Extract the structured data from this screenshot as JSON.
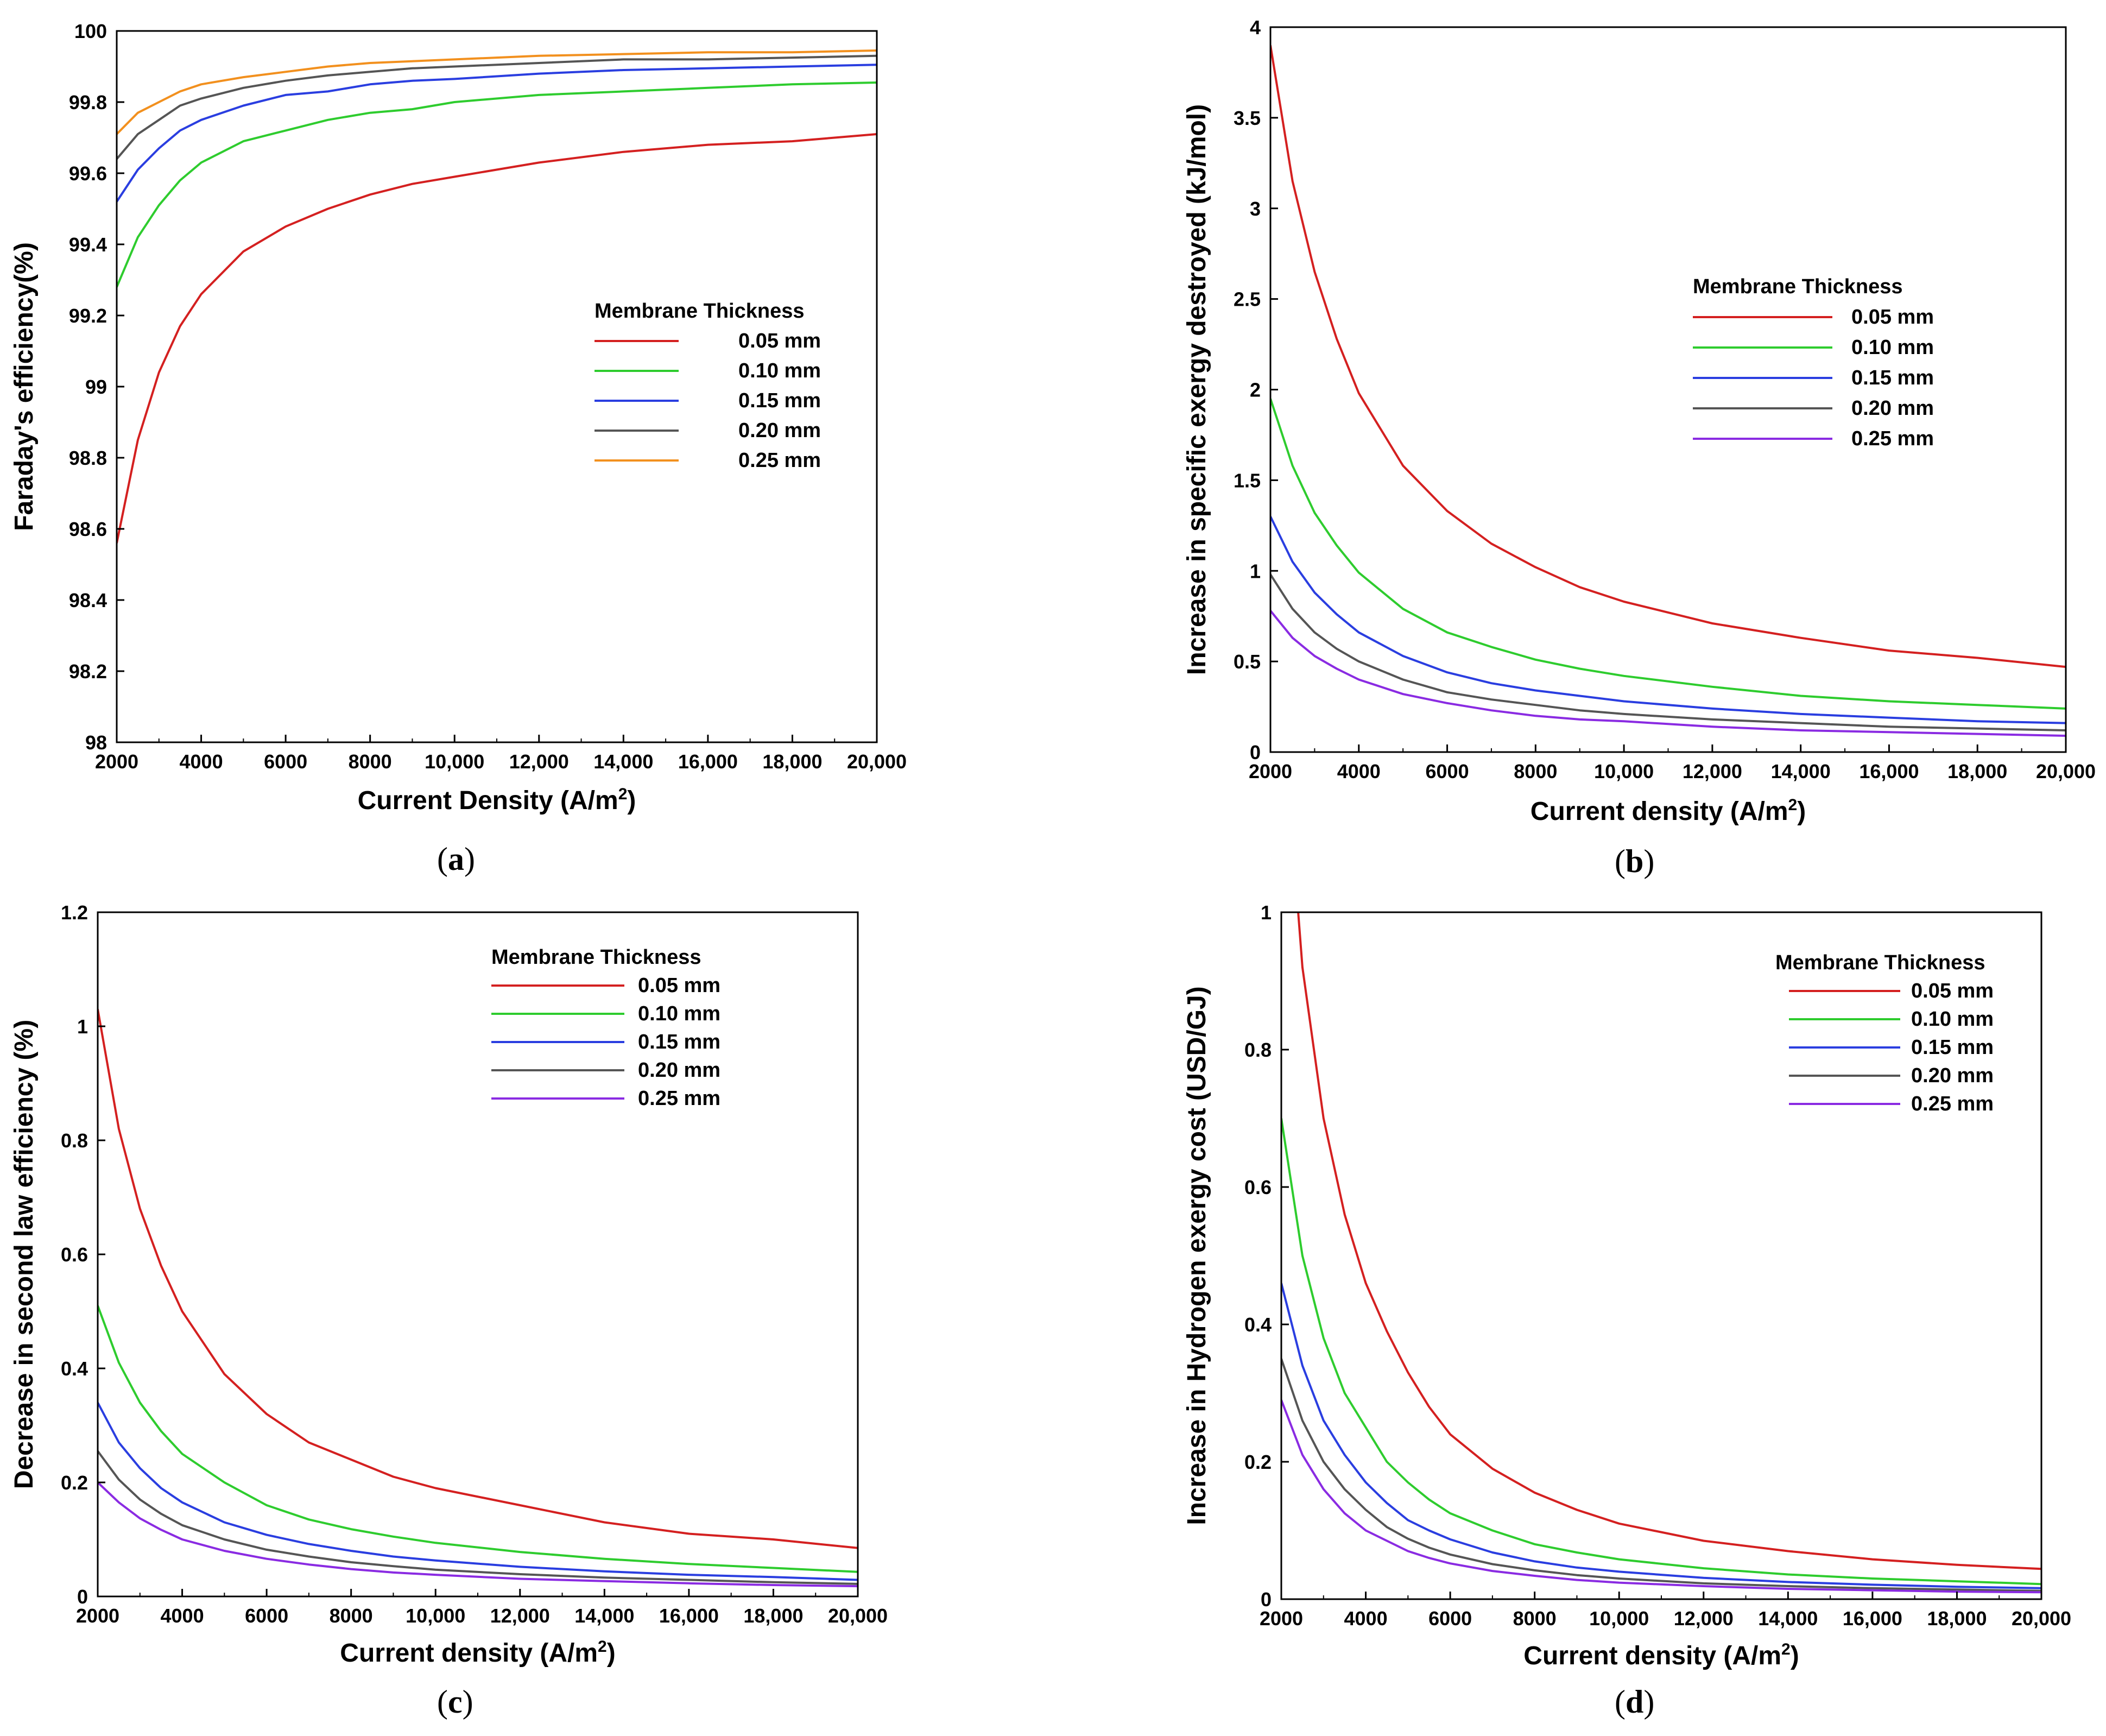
{
  "figure": {
    "legend_title": "Membrane Thickness",
    "series_names": [
      "0.05 mm",
      "0.10 mm",
      "0.15 mm",
      "0.20 mm",
      "0.25 mm"
    ],
    "colors": {
      "0.05 mm": "#d42020",
      "0.10 mm": "#2ecc2e",
      "0.15 mm": "#2a3ee0",
      "0.20 mm": "#555555",
      "0.25 mm": "#f2901e",
      "0.25 mm_alt": "#8a2be2"
    }
  },
  "chart_data": [
    {
      "id": "a",
      "caption_letter": "a",
      "type": "line",
      "xlabel": "Current Density (A/m",
      "xlabel_sup": "2",
      "xlabel_end": ")",
      "ylabel": "Faraday's efficiency(%)",
      "xlim": [
        2000,
        20000
      ],
      "ylim": [
        98,
        100
      ],
      "xticks": [
        2000,
        4000,
        6000,
        8000,
        10000,
        12000,
        14000,
        16000,
        18000,
        20000
      ],
      "xtick_labels": [
        "2000",
        "4000",
        "6000",
        "8000",
        "10,000",
        "12,000",
        "14,000",
        "16,000",
        "18,000",
        "20,000"
      ],
      "yticks": [
        98,
        98.2,
        98.4,
        98.6,
        98.8,
        99,
        99.2,
        99.4,
        99.6,
        99.8,
        100
      ],
      "ytick_labels": [
        "98",
        "98.2",
        "98.4",
        "98.6",
        "98.8",
        "99",
        "99.2",
        "99.4",
        "99.6",
        "99.8",
        "100"
      ],
      "legend_title": "Membrane Thickness",
      "x": [
        2000,
        2500,
        3000,
        3500,
        4000,
        5000,
        6000,
        7000,
        8000,
        9000,
        10000,
        12000,
        14000,
        16000,
        18000,
        20000
      ],
      "series": [
        {
          "name": "0.05 mm",
          "color": "#d42020",
          "values": [
            98.56,
            98.85,
            99.04,
            99.17,
            99.26,
            99.38,
            99.45,
            99.5,
            99.54,
            99.57,
            99.59,
            99.63,
            99.66,
            99.68,
            99.69,
            99.71
          ]
        },
        {
          "name": "0.10 mm",
          "color": "#2ecc2e",
          "values": [
            99.28,
            99.42,
            99.51,
            99.58,
            99.63,
            99.69,
            99.72,
            99.75,
            99.77,
            99.78,
            99.8,
            99.82,
            99.83,
            99.84,
            99.85,
            99.855
          ]
        },
        {
          "name": "0.15 mm",
          "color": "#2a3ee0",
          "values": [
            99.52,
            99.61,
            99.67,
            99.72,
            99.75,
            99.79,
            99.82,
            99.83,
            99.85,
            99.86,
            99.865,
            99.88,
            99.89,
            99.895,
            99.9,
            99.905
          ]
        },
        {
          "name": "0.20 mm",
          "color": "#555555",
          "values": [
            99.64,
            99.71,
            99.75,
            99.79,
            99.81,
            99.84,
            99.86,
            99.875,
            99.885,
            99.895,
            99.9,
            99.91,
            99.92,
            99.92,
            99.925,
            99.93
          ]
        },
        {
          "name": "0.25 mm",
          "color": "#f2901e",
          "values": [
            99.71,
            99.77,
            99.8,
            99.83,
            99.85,
            99.87,
            99.885,
            99.9,
            99.91,
            99.915,
            99.92,
            99.93,
            99.935,
            99.94,
            99.94,
            99.945
          ]
        }
      ]
    },
    {
      "id": "b",
      "caption_letter": "b",
      "type": "line",
      "xlabel": "Current density (A/m",
      "xlabel_sup": "2",
      "xlabel_end": ")",
      "ylabel": "Increase in specific exergy destroyed (kJ/mol)",
      "xlim": [
        2000,
        20000
      ],
      "ylim": [
        0,
        4
      ],
      "xticks": [
        2000,
        4000,
        6000,
        8000,
        10000,
        12000,
        14000,
        16000,
        18000,
        20000
      ],
      "xtick_labels": [
        "2000",
        "4000",
        "6000",
        "8000",
        "10,000",
        "12,000",
        "14,000",
        "16,000",
        "18,000",
        "20,000"
      ],
      "yticks": [
        0,
        0.5,
        1,
        1.5,
        2,
        2.5,
        3,
        3.5,
        4
      ],
      "ytick_labels": [
        "0",
        "0.5",
        "1",
        "1.5",
        "2",
        "2.5",
        "3",
        "3.5",
        "4"
      ],
      "legend_title": "Membrane Thickness",
      "x": [
        2000,
        2500,
        3000,
        3500,
        4000,
        5000,
        6000,
        7000,
        8000,
        9000,
        10000,
        12000,
        14000,
        16000,
        18000,
        20000
      ],
      "series": [
        {
          "name": "0.05 mm",
          "color": "#d42020",
          "values": [
            3.9,
            3.15,
            2.65,
            2.28,
            1.98,
            1.58,
            1.33,
            1.15,
            1.02,
            0.91,
            0.83,
            0.71,
            0.63,
            0.56,
            0.52,
            0.47
          ]
        },
        {
          "name": "0.10 mm",
          "color": "#2ecc2e",
          "values": [
            1.95,
            1.58,
            1.32,
            1.14,
            0.99,
            0.79,
            0.66,
            0.58,
            0.51,
            0.46,
            0.42,
            0.36,
            0.31,
            0.28,
            0.26,
            0.24
          ]
        },
        {
          "name": "0.15 mm",
          "color": "#2a3ee0",
          "values": [
            1.3,
            1.05,
            0.88,
            0.76,
            0.66,
            0.53,
            0.44,
            0.38,
            0.34,
            0.31,
            0.28,
            0.24,
            0.21,
            0.19,
            0.17,
            0.16
          ]
        },
        {
          "name": "0.20 mm",
          "color": "#555555",
          "values": [
            0.98,
            0.79,
            0.66,
            0.57,
            0.5,
            0.4,
            0.33,
            0.29,
            0.26,
            0.23,
            0.21,
            0.18,
            0.16,
            0.14,
            0.13,
            0.12
          ]
        },
        {
          "name": "0.25 mm",
          "color": "#8a2be2",
          "values": [
            0.78,
            0.63,
            0.53,
            0.46,
            0.4,
            0.32,
            0.27,
            0.23,
            0.2,
            0.18,
            0.17,
            0.14,
            0.12,
            0.11,
            0.1,
            0.09
          ]
        }
      ]
    },
    {
      "id": "c",
      "caption_letter": "c",
      "type": "line",
      "xlabel": "Current density (A/m",
      "xlabel_sup": "2",
      "xlabel_end": ")",
      "ylabel": "Decrease in second law efficiency (%)",
      "xlim": [
        2000,
        20000
      ],
      "ylim": [
        0,
        1.2
      ],
      "xticks": [
        2000,
        4000,
        6000,
        8000,
        10000,
        12000,
        14000,
        16000,
        18000,
        20000
      ],
      "xtick_labels": [
        "2000",
        "4000",
        "6000",
        "8000",
        "10,000",
        "12,000",
        "14,000",
        "16,000",
        "18,000",
        "20,000"
      ],
      "yticks": [
        0,
        0.2,
        0.4,
        0.6,
        0.8,
        1,
        1.2
      ],
      "ytick_labels": [
        "0",
        "0.2",
        "0.4",
        "0.6",
        "0.8",
        "1",
        "1.2"
      ],
      "legend_title": "Membrane Thickness",
      "x": [
        2000,
        2500,
        3000,
        3500,
        4000,
        5000,
        6000,
        7000,
        8000,
        9000,
        10000,
        12000,
        14000,
        16000,
        18000,
        20000
      ],
      "series": [
        {
          "name": "0.05 mm",
          "color": "#d42020",
          "values": [
            1.03,
            0.82,
            0.68,
            0.58,
            0.5,
            0.39,
            0.32,
            0.27,
            0.24,
            0.21,
            0.19,
            0.16,
            0.13,
            0.11,
            0.1,
            0.085
          ]
        },
        {
          "name": "0.10 mm",
          "color": "#2ecc2e",
          "values": [
            0.51,
            0.41,
            0.34,
            0.29,
            0.25,
            0.2,
            0.16,
            0.135,
            0.118,
            0.105,
            0.094,
            0.078,
            0.066,
            0.057,
            0.05,
            0.043
          ]
        },
        {
          "name": "0.15 mm",
          "color": "#2a3ee0",
          "values": [
            0.34,
            0.27,
            0.225,
            0.19,
            0.165,
            0.13,
            0.108,
            0.092,
            0.08,
            0.07,
            0.063,
            0.052,
            0.044,
            0.038,
            0.034,
            0.029
          ]
        },
        {
          "name": "0.20 mm",
          "color": "#555555",
          "values": [
            0.255,
            0.205,
            0.17,
            0.145,
            0.125,
            0.1,
            0.082,
            0.07,
            0.06,
            0.053,
            0.047,
            0.039,
            0.033,
            0.029,
            0.025,
            0.022
          ]
        },
        {
          "name": "0.25 mm",
          "color": "#8a2be2",
          "values": [
            0.2,
            0.165,
            0.137,
            0.117,
            0.1,
            0.08,
            0.066,
            0.056,
            0.048,
            0.042,
            0.038,
            0.031,
            0.027,
            0.023,
            0.02,
            0.018
          ]
        }
      ]
    },
    {
      "id": "d",
      "caption_letter": "d",
      "type": "line",
      "xlabel": "Current density (A/m",
      "xlabel_sup": "2",
      "xlabel_end": ")",
      "ylabel": "Increase in Hydrogen exergy cost (USD/GJ)",
      "xlim": [
        2000,
        20000
      ],
      "ylim": [
        0,
        1
      ],
      "xticks": [
        2000,
        4000,
        6000,
        8000,
        10000,
        12000,
        14000,
        16000,
        18000,
        20000
      ],
      "xtick_labels": [
        "2000",
        "4000",
        "6000",
        "8000",
        "10,000",
        "12,000",
        "14,000",
        "16,000",
        "18,000",
        "20,000"
      ],
      "yticks": [
        0,
        0.2,
        0.4,
        0.6,
        0.8,
        1
      ],
      "ytick_labels": [
        "0",
        "0.2",
        "0.4",
        "0.6",
        "0.8",
        "1"
      ],
      "legend_title": "Membrane Thickness",
      "x": [
        2400,
        2500,
        3000,
        3500,
        4000,
        4500,
        5000,
        5500,
        6000,
        7000,
        8000,
        9000,
        10000,
        12000,
        14000,
        16000,
        18000,
        20000
      ],
      "series": [
        {
          "name": "0.05 mm",
          "color": "#d42020",
          "values": [
            1.0,
            0.92,
            0.7,
            0.56,
            0.46,
            0.39,
            0.33,
            0.28,
            0.24,
            0.19,
            0.155,
            0.13,
            0.11,
            0.085,
            0.07,
            0.058,
            0.05,
            0.044
          ]
        },
        {
          "name": "0.10 mm",
          "color": "#2ecc2e",
          "x": [
            2000,
            2500,
            3000,
            3500,
            4000,
            4500,
            5000,
            5500,
            6000,
            7000,
            8000,
            9000,
            10000,
            12000,
            14000,
            16000,
            18000,
            20000
          ],
          "values": [
            0.7,
            0.5,
            0.38,
            0.3,
            0.25,
            0.2,
            0.17,
            0.145,
            0.125,
            0.1,
            0.08,
            0.068,
            0.058,
            0.045,
            0.036,
            0.03,
            0.026,
            0.022
          ]
        },
        {
          "name": "0.15 mm",
          "color": "#2a3ee0",
          "x": [
            2000,
            2500,
            3000,
            3500,
            4000,
            4500,
            5000,
            5500,
            6000,
            7000,
            8000,
            9000,
            10000,
            12000,
            14000,
            16000,
            18000,
            20000
          ],
          "values": [
            0.46,
            0.34,
            0.26,
            0.21,
            0.17,
            0.14,
            0.115,
            0.1,
            0.087,
            0.068,
            0.055,
            0.046,
            0.04,
            0.031,
            0.025,
            0.021,
            0.018,
            0.016
          ]
        },
        {
          "name": "0.20 mm",
          "color": "#555555",
          "x": [
            2000,
            2500,
            3000,
            3500,
            4000,
            4500,
            5000,
            5500,
            6000,
            7000,
            8000,
            9000,
            10000,
            12000,
            14000,
            16000,
            18000,
            20000
          ],
          "values": [
            0.35,
            0.26,
            0.2,
            0.16,
            0.13,
            0.105,
            0.088,
            0.075,
            0.065,
            0.051,
            0.042,
            0.035,
            0.03,
            0.023,
            0.019,
            0.016,
            0.014,
            0.012
          ]
        },
        {
          "name": "0.25 mm",
          "color": "#8a2be2",
          "x": [
            2000,
            2500,
            3000,
            3500,
            4000,
            4500,
            5000,
            5500,
            6000,
            7000,
            8000,
            9000,
            10000,
            12000,
            14000,
            16000,
            18000,
            20000
          ],
          "values": [
            0.29,
            0.21,
            0.16,
            0.125,
            0.1,
            0.085,
            0.07,
            0.06,
            0.052,
            0.041,
            0.034,
            0.028,
            0.024,
            0.019,
            0.015,
            0.013,
            0.011,
            0.01
          ]
        }
      ]
    }
  ]
}
